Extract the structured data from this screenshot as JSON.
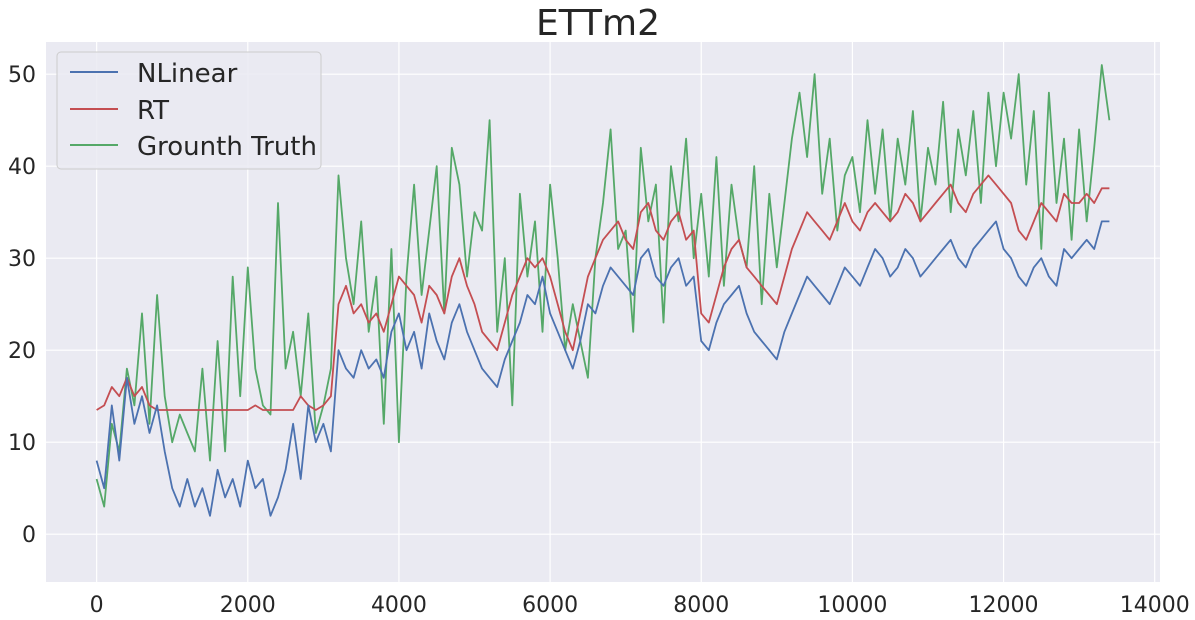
{
  "chart_data": {
    "type": "line",
    "title": "ETTm2",
    "xlabel": "",
    "ylabel": "",
    "xlim": [
      -670,
      14070
    ],
    "ylim": [
      -5.2,
      53.5
    ],
    "xticks": [
      0,
      2000,
      4000,
      6000,
      8000,
      10000,
      12000,
      14000
    ],
    "yticks": [
      0,
      10,
      20,
      30,
      40,
      50
    ],
    "grid": true,
    "legend_position": "top-left",
    "colors": {
      "background": "#eaeaf2",
      "grid": "#ffffff",
      "NLinear": "#4c72b0",
      "RT": "#c44e52",
      "Grounth Truth": "#55a868"
    },
    "series": [
      {
        "name": "NLinear",
        "x": [
          0,
          100,
          200,
          300,
          400,
          500,
          600,
          700,
          800,
          900,
          1000,
          1100,
          1200,
          1300,
          1400,
          1500,
          1600,
          1700,
          1800,
          1900,
          2000,
          2100,
          2200,
          2300,
          2400,
          2500,
          2600,
          2700,
          2800,
          2900,
          3000,
          3100,
          3200,
          3300,
          3400,
          3500,
          3600,
          3700,
          3800,
          3900,
          4000,
          4100,
          4200,
          4300,
          4400,
          4500,
          4600,
          4700,
          4800,
          4900,
          5000,
          5100,
          5200,
          5300,
          5400,
          5500,
          5600,
          5700,
          5800,
          5900,
          6000,
          6100,
          6200,
          6300,
          6400,
          6500,
          6600,
          6700,
          6800,
          6900,
          7000,
          7100,
          7200,
          7300,
          7400,
          7500,
          7600,
          7700,
          7800,
          7900,
          8000,
          8100,
          8200,
          8300,
          8400,
          8500,
          8600,
          8700,
          8800,
          8900,
          9000,
          9100,
          9200,
          9300,
          9400,
          9500,
          9600,
          9700,
          9800,
          9900,
          10000,
          10100,
          10200,
          10300,
          10400,
          10500,
          10600,
          10700,
          10800,
          10900,
          11000,
          11100,
          11200,
          11300,
          11400,
          11500,
          11600,
          11700,
          11800,
          11900,
          12000,
          12100,
          12200,
          12300,
          12400,
          12500,
          12600,
          12700,
          12800,
          12900,
          13000,
          13100,
          13200,
          13300,
          13400
        ],
        "values": [
          8,
          5,
          14,
          8,
          17,
          12,
          15,
          11,
          14,
          9,
          5,
          3,
          6,
          3,
          5,
          2,
          7,
          4,
          6,
          3,
          8,
          5,
          6,
          2,
          4,
          7,
          12,
          6,
          14,
          10,
          12,
          9,
          20,
          18,
          17,
          20,
          18,
          19,
          17,
          22,
          24,
          20,
          22,
          18,
          24,
          21,
          19,
          23,
          25,
          22,
          20,
          18,
          17,
          16,
          19,
          21,
          23,
          26,
          25,
          28,
          24,
          22,
          20,
          18,
          21,
          25,
          24,
          27,
          29,
          28,
          27,
          26,
          30,
          31,
          28,
          27,
          29,
          30,
          27,
          28,
          21,
          20,
          23,
          25,
          26,
          27,
          24,
          22,
          21,
          20,
          19,
          22,
          24,
          26,
          28,
          27,
          26,
          25,
          27,
          29,
          28,
          27,
          29,
          31,
          30,
          28,
          29,
          31,
          30,
          28,
          29,
          30,
          31,
          32,
          30,
          29,
          31,
          32,
          33,
          34,
          31,
          30,
          28,
          27,
          29,
          30,
          28,
          27,
          31,
          30,
          31,
          32,
          31,
          34,
          34
        ]
      },
      {
        "name": "RT",
        "x": [
          0,
          100,
          200,
          300,
          400,
          500,
          600,
          700,
          800,
          900,
          1000,
          1100,
          1200,
          1300,
          1400,
          1500,
          1600,
          1700,
          1800,
          1900,
          2000,
          2100,
          2200,
          2300,
          2400,
          2500,
          2600,
          2700,
          2800,
          2900,
          3000,
          3100,
          3200,
          3300,
          3400,
          3500,
          3600,
          3700,
          3800,
          3900,
          4000,
          4100,
          4200,
          4300,
          4400,
          4500,
          4600,
          4700,
          4800,
          4900,
          5000,
          5100,
          5200,
          5300,
          5400,
          5500,
          5600,
          5700,
          5800,
          5900,
          6000,
          6100,
          6200,
          6300,
          6400,
          6500,
          6600,
          6700,
          6800,
          6900,
          7000,
          7100,
          7200,
          7300,
          7400,
          7500,
          7600,
          7700,
          7800,
          7900,
          8000,
          8100,
          8200,
          8300,
          8400,
          8500,
          8600,
          8700,
          8800,
          8900,
          9000,
          9100,
          9200,
          9300,
          9400,
          9500,
          9600,
          9700,
          9800,
          9900,
          10000,
          10100,
          10200,
          10300,
          10400,
          10500,
          10600,
          10700,
          10800,
          10900,
          11000,
          11100,
          11200,
          11300,
          11400,
          11500,
          11600,
          11700,
          11800,
          11900,
          12000,
          12100,
          12200,
          12300,
          12400,
          12500,
          12600,
          12700,
          12800,
          12900,
          13000,
          13100,
          13200,
          13300,
          13400
        ],
        "values": [
          13.5,
          14,
          16,
          15,
          17,
          15,
          16,
          14,
          13.5,
          13.5,
          13.5,
          13.5,
          13.5,
          13.5,
          13.5,
          13.5,
          13.5,
          13.5,
          13.5,
          13.5,
          13.5,
          14,
          13.5,
          13.5,
          13.5,
          13.5,
          13.5,
          15,
          14,
          13.5,
          14,
          15,
          25,
          27,
          24,
          25,
          23,
          24,
          22,
          25,
          28,
          27,
          26,
          23,
          27,
          26,
          24,
          28,
          30,
          27,
          25,
          22,
          21,
          20,
          23,
          26,
          28,
          30,
          29,
          30,
          28,
          25,
          22,
          20,
          24,
          28,
          30,
          32,
          33,
          34,
          32,
          31,
          35,
          36,
          33,
          32,
          34,
          35,
          32,
          33,
          24,
          23,
          26,
          29,
          31,
          32,
          29,
          28,
          27,
          26,
          25,
          28,
          31,
          33,
          35,
          34,
          33,
          32,
          34,
          36,
          34,
          33,
          35,
          36,
          35,
          34,
          35,
          37,
          36,
          34,
          35,
          36,
          37,
          38,
          36,
          35,
          37,
          38,
          39,
          38,
          37,
          36,
          33,
          32,
          34,
          36,
          35,
          34,
          37,
          36,
          36,
          37,
          36,
          37.6,
          37.6
        ]
      },
      {
        "name": "Grounth Truth",
        "x": [
          0,
          100,
          200,
          300,
          400,
          500,
          600,
          700,
          800,
          900,
          1000,
          1100,
          1200,
          1300,
          1400,
          1500,
          1600,
          1700,
          1800,
          1900,
          2000,
          2100,
          2200,
          2300,
          2400,
          2500,
          2600,
          2700,
          2800,
          2900,
          3000,
          3100,
          3200,
          3300,
          3400,
          3500,
          3600,
          3700,
          3800,
          3900,
          4000,
          4100,
          4200,
          4300,
          4400,
          4500,
          4600,
          4700,
          4800,
          4900,
          5000,
          5100,
          5200,
          5300,
          5400,
          5500,
          5600,
          5700,
          5800,
          5900,
          6000,
          6100,
          6200,
          6300,
          6400,
          6500,
          6600,
          6700,
          6800,
          6900,
          7000,
          7100,
          7200,
          7300,
          7400,
          7500,
          7600,
          7700,
          7800,
          7900,
          8000,
          8100,
          8200,
          8300,
          8400,
          8500,
          8600,
          8700,
          8800,
          8900,
          9000,
          9100,
          9200,
          9300,
          9400,
          9500,
          9600,
          9700,
          9800,
          9900,
          10000,
          10100,
          10200,
          10300,
          10400,
          10500,
          10600,
          10700,
          10800,
          10900,
          11000,
          11100,
          11200,
          11300,
          11400,
          11500,
          11600,
          11700,
          11800,
          11900,
          12000,
          12100,
          12200,
          12300,
          12400,
          12500,
          12600,
          12700,
          12800,
          12900,
          13000,
          13100,
          13200,
          13300,
          13400
        ],
        "values": [
          6,
          3,
          12,
          9,
          18,
          14,
          24,
          12,
          26,
          15,
          10,
          13,
          11,
          9,
          18,
          8,
          21,
          9,
          28,
          15,
          29,
          18,
          14,
          13,
          36,
          18,
          22,
          15,
          24,
          11,
          14,
          18,
          39,
          30,
          25,
          34,
          22,
          28,
          12,
          31,
          10,
          28,
          38,
          26,
          33,
          40,
          24,
          42,
          38,
          28,
          35,
          33,
          45,
          22,
          30,
          14,
          37,
          28,
          34,
          22,
          38,
          30,
          20,
          25,
          21,
          17,
          30,
          36,
          44,
          31,
          33,
          22,
          42,
          34,
          38,
          23,
          40,
          34,
          43,
          30,
          37,
          28,
          41,
          27,
          38,
          32,
          29,
          40,
          25,
          37,
          29,
          36,
          43,
          48,
          41,
          50,
          37,
          43,
          33,
          39,
          41,
          35,
          45,
          37,
          44,
          34,
          43,
          38,
          46,
          34,
          42,
          38,
          47,
          35,
          44,
          39,
          46,
          36,
          48,
          40,
          48,
          43,
          50,
          38,
          46,
          31,
          48,
          36,
          43,
          32,
          44,
          34,
          42,
          51,
          45
        ]
      }
    ]
  }
}
